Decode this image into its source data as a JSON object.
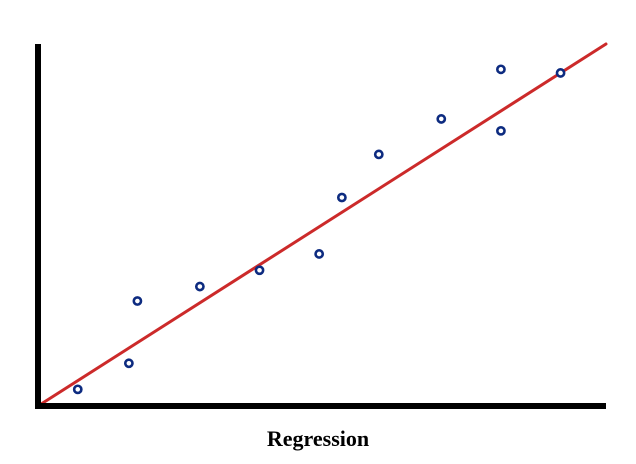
{
  "chart_data": {
    "type": "scatter",
    "title": "Regression",
    "xlabel": "",
    "ylabel": "",
    "xlim": [
      0,
      10
    ],
    "ylim": [
      0,
      10
    ],
    "grid": false,
    "legend": "none",
    "series": [
      {
        "type": "scatter",
        "color": "#0d2b80",
        "points": [
          {
            "x": 0.7,
            "y": 0.46
          },
          {
            "x": 1.6,
            "y": 1.18
          },
          {
            "x": 1.75,
            "y": 2.9
          },
          {
            "x": 2.85,
            "y": 3.3
          },
          {
            "x": 3.9,
            "y": 3.75
          },
          {
            "x": 4.95,
            "y": 4.2
          },
          {
            "x": 5.35,
            "y": 5.76
          },
          {
            "x": 6.0,
            "y": 6.95
          },
          {
            "x": 7.1,
            "y": 7.93
          },
          {
            "x": 8.15,
            "y": 9.3
          },
          {
            "x": 8.15,
            "y": 7.6
          },
          {
            "x": 9.2,
            "y": 9.2
          }
        ]
      },
      {
        "type": "line",
        "color": "#cc2a2a",
        "points": [
          {
            "x": 0.0,
            "y": 0.0
          },
          {
            "x": 10.0,
            "y": 10.0
          }
        ]
      }
    ],
    "colors": {
      "axis": "#000000",
      "points": "#0d2b80",
      "regression_line": "#cc2a2a"
    }
  }
}
